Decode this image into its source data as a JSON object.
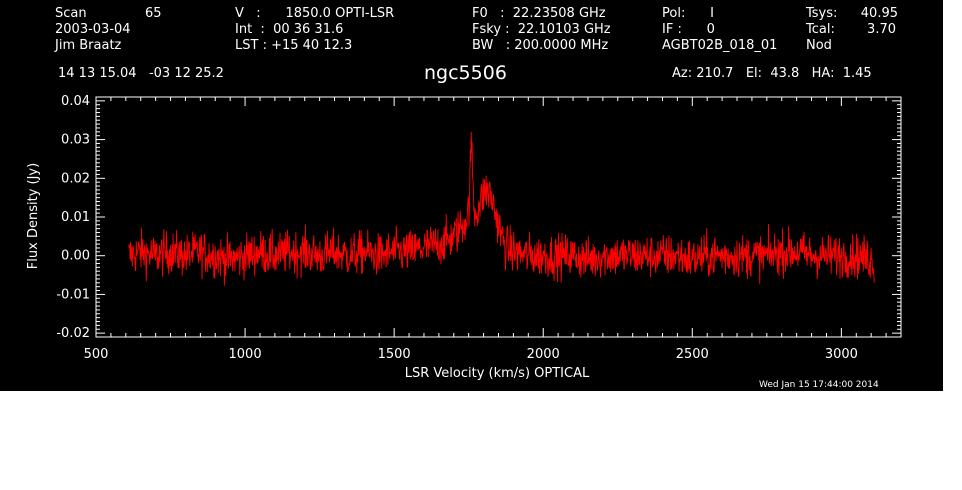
{
  "header": {
    "col1": [
      "Scan",
      "2003-03-04",
      "Jim Braatz"
    ],
    "scan_number": "65",
    "col2": [
      "V   :      1850.0 OPTI-LSR",
      "Int  :  00 36 31.6",
      "LST : +15 40 12.3"
    ],
    "col3": [
      "F0   :  22.23508 GHz",
      "Fsky :  22.10103 GHz",
      "BW   : 200.0000 MHz"
    ],
    "col4": [
      "Pol:      I",
      "IF :      0",
      "AGBT02B_018_01"
    ],
    "col5": [
      "Tsys:",
      "Tcal:",
      "Nod"
    ],
    "col5_values": [
      "40.95",
      "3.70"
    ],
    "coords": "14 13 15.04   -03 12 25.2",
    "source": "ngc5506",
    "pointing": "Az: 210.7   El:  43.8   HA:  1.45",
    "timestamp": "Wed Jan 15 17:44:00 2014"
  },
  "chart_data": {
    "type": "line",
    "xlabel": "LSR Velocity (km/s) OPTICAL",
    "ylabel": "Flux Density (Jy)",
    "xlim": [
      500,
      3200
    ],
    "ylim": [
      -0.021,
      0.041
    ],
    "x_ticks": [
      500,
      1000,
      1500,
      2000,
      2500,
      3000
    ],
    "y_ticks": [
      -0.02,
      -0.01,
      0.0,
      0.01,
      0.02,
      0.03,
      0.04
    ],
    "y_tick_labels": [
      "-0.02",
      "-0.01",
      "0.00",
      "0.01",
      "0.02",
      "0.03",
      "0.04"
    ],
    "grid": false,
    "series": [
      {
        "color": "#ff0000",
        "x": [
          610,
          650,
          700,
          750,
          800,
          850,
          900,
          950,
          1000,
          1050,
          1100,
          1150,
          1200,
          1250,
          1300,
          1350,
          1400,
          1450,
          1500,
          1550,
          1600,
          1650,
          1680,
          1700,
          1720,
          1740,
          1750,
          1760,
          1765,
          1770,
          1780,
          1790,
          1800,
          1810,
          1820,
          1830,
          1840,
          1850,
          1860,
          1870,
          1880,
          1900,
          1950,
          2000,
          2050,
          2100,
          2150,
          2200,
          2250,
          2300,
          2350,
          2400,
          2450,
          2500,
          2550,
          2600,
          2650,
          2700,
          2750,
          2800,
          2850,
          2900,
          2950,
          3000,
          3050,
          3100,
          3110
        ],
        "y": [
          0.0,
          0.001,
          0.0,
          0.001,
          0.0,
          0.001,
          0.0,
          -0.001,
          0.0,
          0.001,
          0.0,
          0.001,
          0.001,
          0.0,
          0.001,
          0.0,
          0.001,
          0.0,
          0.001,
          0.001,
          0.002,
          0.003,
          0.004,
          0.005,
          0.007,
          0.009,
          0.012,
          0.03,
          0.016,
          0.011,
          0.012,
          0.014,
          0.016,
          0.017,
          0.016,
          0.014,
          0.011,
          0.008,
          0.005,
          0.003,
          0.002,
          0.001,
          0.0,
          0.0,
          0.0,
          0.0,
          -0.001,
          0.0,
          0.0,
          0.0,
          0.0,
          0.0,
          0.0,
          -0.001,
          0.0,
          0.0,
          0.0,
          0.0,
          0.0,
          0.001,
          0.001,
          0.0,
          0.0,
          0.0,
          0.0,
          -0.001,
          -0.002
        ]
      }
    ]
  }
}
